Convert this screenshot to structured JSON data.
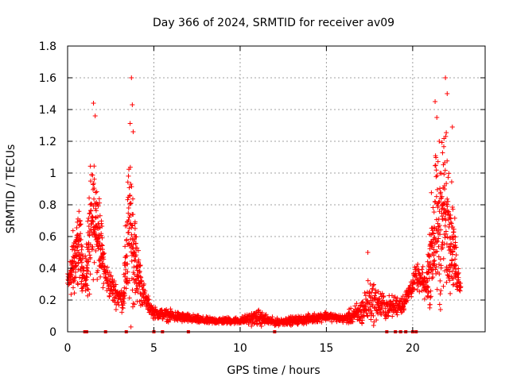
{
  "chart_data": {
    "type": "scatter",
    "title": "Day 366 of 2024, SRMTID for receiver av09",
    "xlabel": "GPS time / hours",
    "ylabel": "SRMTID / TECUs",
    "xlim": [
      0,
      24.2
    ],
    "ylim": [
      0,
      1.8
    ],
    "x_ticks": [
      0,
      5,
      10,
      15,
      20
    ],
    "x_tick_labels": [
      "0",
      "5",
      "10",
      "15",
      "20"
    ],
    "y_ticks": [
      0,
      0.2,
      0.4,
      0.6,
      0.8,
      1.0,
      1.2,
      1.4,
      1.6,
      1.8
    ],
    "y_tick_labels": [
      "0",
      "0.2",
      "0.4",
      "0.6",
      "0.8",
      "1",
      "1.2",
      "1.4",
      "1.6",
      "1.8"
    ],
    "grid": true,
    "marker": "plus",
    "color": "#ff0000",
    "zero_markers_x": [
      1.0,
      1.1,
      2.2,
      3.4,
      5.0,
      5.5,
      7.0,
      12.0,
      18.5,
      19.0,
      19.3,
      19.6,
      20.0,
      20.2
    ],
    "envelope": [
      {
        "x": 0.0,
        "base": 0.3,
        "spread": 0.1
      },
      {
        "x": 0.4,
        "base": 0.45,
        "spread": 0.35
      },
      {
        "x": 0.7,
        "base": 0.55,
        "spread": 0.3
      },
      {
        "x": 1.0,
        "base": 0.3,
        "spread": 0.15
      },
      {
        "x": 1.3,
        "base": 0.6,
        "spread": 0.55
      },
      {
        "x": 1.6,
        "base": 0.75,
        "spread": 0.4
      },
      {
        "x": 1.9,
        "base": 0.55,
        "spread": 0.3
      },
      {
        "x": 2.2,
        "base": 0.35,
        "spread": 0.15
      },
      {
        "x": 2.7,
        "base": 0.25,
        "spread": 0.12
      },
      {
        "x": 3.2,
        "base": 0.2,
        "spread": 0.1
      },
      {
        "x": 3.6,
        "base": 0.7,
        "spread": 0.8
      },
      {
        "x": 4.0,
        "base": 0.4,
        "spread": 0.3
      },
      {
        "x": 4.5,
        "base": 0.2,
        "spread": 0.08
      },
      {
        "x": 5.0,
        "base": 0.12,
        "spread": 0.05
      },
      {
        "x": 6.0,
        "base": 0.1,
        "spread": 0.05
      },
      {
        "x": 8.0,
        "base": 0.07,
        "spread": 0.03
      },
      {
        "x": 10.0,
        "base": 0.07,
        "spread": 0.03
      },
      {
        "x": 11.0,
        "base": 0.09,
        "spread": 0.07
      },
      {
        "x": 12.0,
        "base": 0.06,
        "spread": 0.03
      },
      {
        "x": 14.0,
        "base": 0.08,
        "spread": 0.04
      },
      {
        "x": 15.0,
        "base": 0.1,
        "spread": 0.04
      },
      {
        "x": 16.0,
        "base": 0.08,
        "spread": 0.03
      },
      {
        "x": 17.0,
        "base": 0.12,
        "spread": 0.12
      },
      {
        "x": 17.5,
        "base": 0.2,
        "spread": 0.2
      },
      {
        "x": 18.5,
        "base": 0.15,
        "spread": 0.1
      },
      {
        "x": 19.5,
        "base": 0.18,
        "spread": 0.08
      },
      {
        "x": 20.2,
        "base": 0.35,
        "spread": 0.1
      },
      {
        "x": 20.8,
        "base": 0.28,
        "spread": 0.15
      },
      {
        "x": 21.2,
        "base": 0.6,
        "spread": 0.6
      },
      {
        "x": 21.8,
        "base": 0.75,
        "spread": 0.8
      },
      {
        "x": 22.2,
        "base": 0.65,
        "spread": 0.5
      },
      {
        "x": 22.6,
        "base": 0.35,
        "spread": 0.15
      },
      {
        "x": 22.8,
        "base": 0.3,
        "spread": 0.1
      }
    ],
    "peaks": [
      {
        "x": 1.5,
        "y": 1.44
      },
      {
        "x": 1.6,
        "y": 1.36
      },
      {
        "x": 3.7,
        "y": 1.6
      },
      {
        "x": 3.75,
        "y": 1.43
      },
      {
        "x": 3.8,
        "y": 1.26
      },
      {
        "x": 17.4,
        "y": 0.5
      },
      {
        "x": 21.3,
        "y": 1.45
      },
      {
        "x": 21.4,
        "y": 1.35
      },
      {
        "x": 21.9,
        "y": 1.6
      },
      {
        "x": 22.0,
        "y": 1.5
      },
      {
        "x": 22.3,
        "y": 1.29
      }
    ]
  }
}
